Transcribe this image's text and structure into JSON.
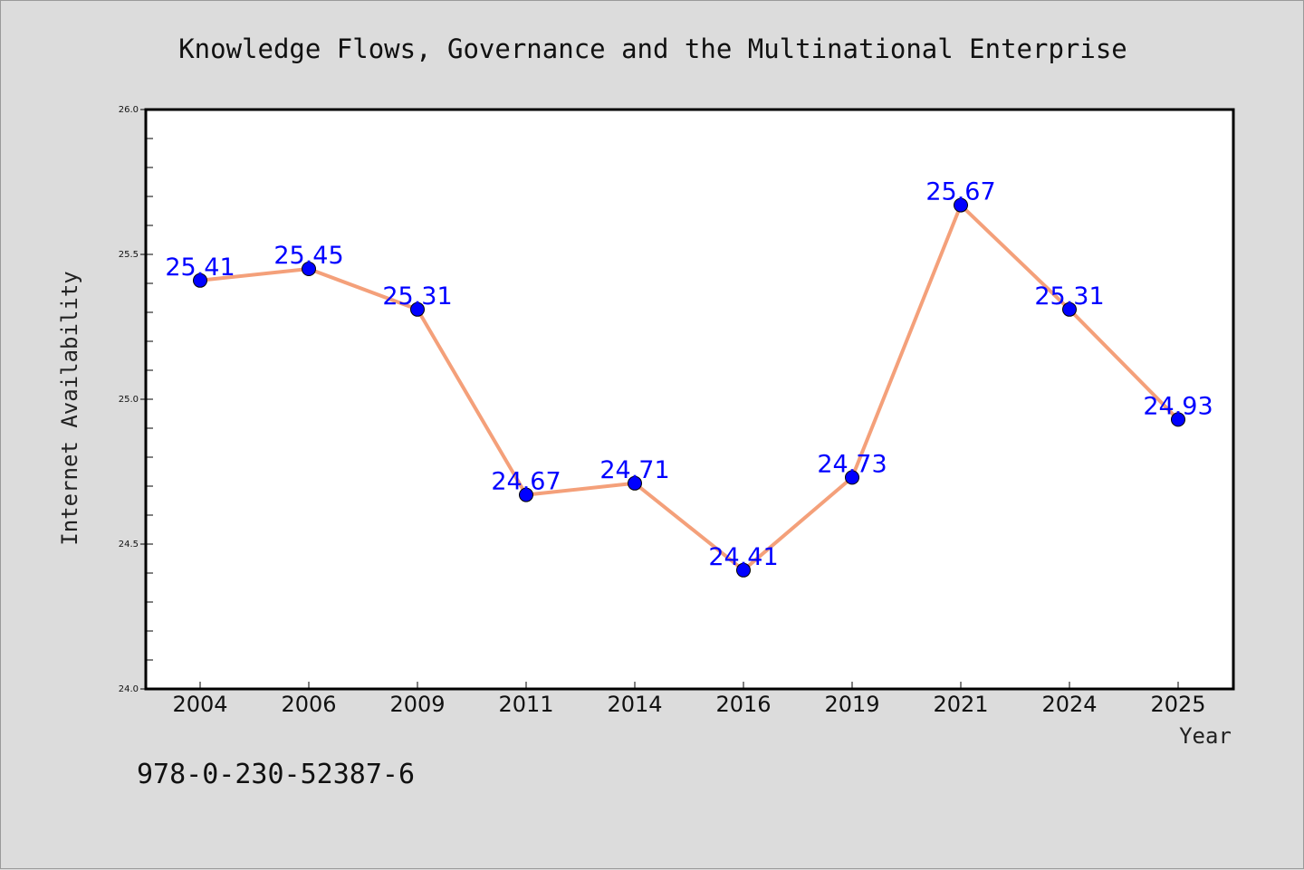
{
  "chart_data": {
    "type": "line",
    "title": "Knowledge Flows, Governance and the Multinational Enterprise",
    "xlabel": "Year",
    "ylabel": "Internet Availability",
    "categories": [
      "2004",
      "2006",
      "2009",
      "2011",
      "2014",
      "2016",
      "2019",
      "2021",
      "2024",
      "2025"
    ],
    "series": [
      {
        "values": [
          25.41,
          25.45,
          25.31,
          24.67,
          24.71,
          24.41,
          24.73,
          25.67,
          25.31,
          24.93
        ],
        "line_color": "#f4a07a",
        "marker_color": "#0000ff"
      }
    ],
    "data_labels": [
      "25.41",
      "25.45",
      "25.31",
      "24.67",
      "24.71",
      "24.41",
      "24.73",
      "25.67",
      "25.31",
      "24.93"
    ],
    "ylim": [
      24.0,
      26.0
    ],
    "yticks": [
      24.0,
      24.5,
      25.0,
      25.5,
      26.0
    ],
    "ytick_labels": [
      "24.0",
      "24.5",
      "25.0",
      "25.5",
      "26.0"
    ],
    "grid": false,
    "legend": "none"
  },
  "footer": {
    "isbn": "978-0-230-52387-6"
  },
  "colors": {
    "background": "#dcdcdc",
    "plot_background": "#ffffff",
    "line": "#f4a07a",
    "marker": "#0000ff",
    "label": "#0000ff"
  }
}
